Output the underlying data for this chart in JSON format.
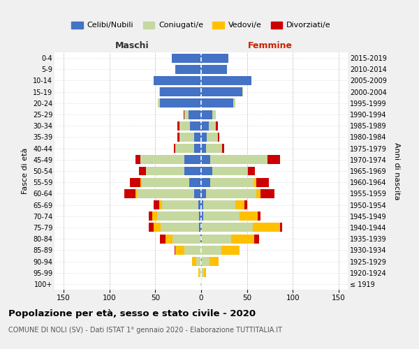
{
  "age_groups": [
    "100+",
    "95-99",
    "90-94",
    "85-89",
    "80-84",
    "75-79",
    "70-74",
    "65-69",
    "60-64",
    "55-59",
    "50-54",
    "45-49",
    "40-44",
    "35-39",
    "30-34",
    "25-29",
    "20-24",
    "15-19",
    "10-14",
    "5-9",
    "0-4"
  ],
  "birth_years": [
    "≤ 1919",
    "1920-1924",
    "1925-1929",
    "1930-1934",
    "1935-1939",
    "1940-1944",
    "1945-1949",
    "1950-1954",
    "1955-1959",
    "1960-1964",
    "1965-1969",
    "1970-1974",
    "1975-1979",
    "1980-1984",
    "1985-1989",
    "1990-1994",
    "1995-1999",
    "2000-2004",
    "2005-2009",
    "2010-2014",
    "2015-2019"
  ],
  "males": {
    "celibi": [
      0,
      0,
      0,
      0,
      1,
      2,
      2,
      3,
      8,
      13,
      18,
      18,
      8,
      8,
      12,
      14,
      45,
      45,
      52,
      28,
      32
    ],
    "coniugati": [
      1,
      2,
      5,
      18,
      30,
      42,
      46,
      40,
      62,
      52,
      42,
      48,
      20,
      16,
      12,
      4,
      2,
      1,
      0,
      0,
      0
    ],
    "vedovi": [
      0,
      1,
      5,
      10,
      8,
      8,
      5,
      3,
      2,
      1,
      0,
      0,
      0,
      0,
      0,
      0,
      0,
      0,
      0,
      0,
      0
    ],
    "divorziati": [
      0,
      0,
      0,
      1,
      6,
      5,
      4,
      6,
      12,
      12,
      8,
      6,
      2,
      2,
      2,
      1,
      0,
      0,
      0,
      0,
      0
    ]
  },
  "females": {
    "nubili": [
      0,
      0,
      1,
      0,
      1,
      1,
      2,
      2,
      5,
      10,
      12,
      10,
      5,
      6,
      8,
      12,
      35,
      45,
      55,
      28,
      30
    ],
    "coniugate": [
      1,
      3,
      8,
      22,
      32,
      55,
      40,
      35,
      55,
      48,
      38,
      62,
      18,
      12,
      8,
      4,
      2,
      1,
      0,
      0,
      0
    ],
    "vedove": [
      0,
      2,
      10,
      20,
      25,
      30,
      20,
      10,
      5,
      2,
      1,
      0,
      0,
      0,
      0,
      0,
      0,
      0,
      0,
      0,
      0
    ],
    "divorziate": [
      0,
      0,
      0,
      0,
      5,
      2,
      3,
      3,
      15,
      14,
      8,
      14,
      2,
      2,
      2,
      0,
      0,
      0,
      0,
      0,
      0
    ]
  },
  "colors": {
    "celibi": "#4472c4",
    "coniugati": "#c5d8a0",
    "vedovi": "#ffc000",
    "divorziati": "#cc0000"
  },
  "xlim": 160,
  "title": "Popolazione per età, sesso e stato civile - 2020",
  "subtitle": "COMUNE DI NOLI (SV) - Dati ISTAT 1° gennaio 2020 - Elaborazione TUTTITALIA.IT",
  "legend_labels": [
    "Celibi/Nubili",
    "Coniugati/e",
    "Vedovi/e",
    "Divorziati/e"
  ],
  "ylabel_left": "Fasce di età",
  "ylabel_right": "Anni di nascita",
  "xlabel_male": "Maschi",
  "xlabel_female": "Femmine",
  "bg_color": "#f0f0f0",
  "plot_bg": "#ffffff"
}
